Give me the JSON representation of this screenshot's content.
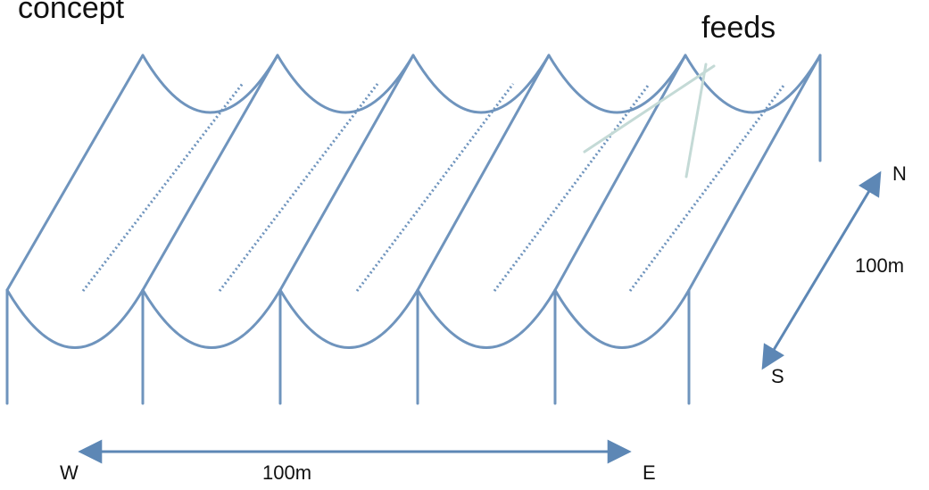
{
  "labels": {
    "title": "concept",
    "feeds": "feeds",
    "north": "N",
    "south": "S",
    "west": "W",
    "east": "E",
    "length_ns": "100m",
    "length_we": "100m"
  },
  "colors": {
    "structure": "#6f94bd",
    "feed_pointer": "#c4dad6",
    "arrow": "#5d87b5",
    "text": "#111111"
  },
  "structure": {
    "trough_count": 5
  }
}
